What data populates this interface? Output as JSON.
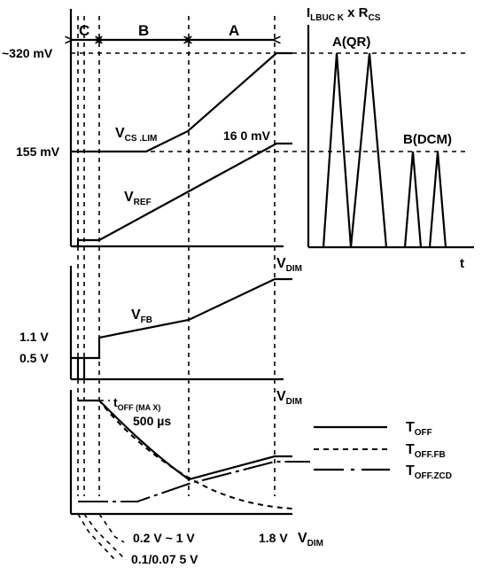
{
  "regions": {
    "c": "C",
    "b": "B",
    "a": "A"
  },
  "top_plot": {
    "level_high": "~320 mV",
    "level_mid": "155 mV",
    "cs_lim_label": "V",
    "cs_lim_sub": "CS .LIM",
    "ref_label": "V",
    "ref_sub": "REF",
    "ref_end_value": "16 0 mV"
  },
  "right_plot": {
    "ylabel_main": "I",
    "ylabel_sub": "LBUC K",
    "ylabel_mid": " x R",
    "ylabel_sub2": "CS",
    "xlabel": "t",
    "qr_label": "A(QR)",
    "dcm_label": "B(DCM)"
  },
  "mid_plot": {
    "fb_label": "V",
    "fb_sub": "FB",
    "level_1v1": "1.1 V",
    "level_0v5": "0.5 V",
    "xlabel_main": "V",
    "xlabel_sub": "DIM",
    "top_xlabel_main": "V",
    "top_xlabel_sub": "DIM"
  },
  "bottom_plot": {
    "toff_max_main": "t",
    "toff_max_sub": "OFF (MA X)",
    "toff_max_value": "500 µs",
    "tick_range": "0.2 V ~ 1 V",
    "tick_1v8": "1.8 V",
    "tick_low": "0.1/0.07 5 V",
    "xlabel_main": "V",
    "xlabel_sub": "DIM"
  },
  "legend": [
    {
      "main": "T",
      "sub": "OFF",
      "style": "solid"
    },
    {
      "main": "T",
      "sub": "OFF.FB",
      "style": "dashed"
    },
    {
      "main": "T",
      "sub": "OFF.ZCD",
      "style": "dash-dot"
    }
  ]
}
